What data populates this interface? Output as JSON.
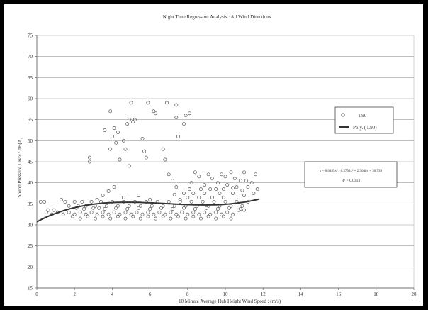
{
  "chart_data": {
    "type": "scatter",
    "title": "Night Time Regression Analysis : All Wind Directions",
    "xlabel": "10 Minute Average Hub Height Wind Speed : (m/s)",
    "ylabel": "Sound Pressure Level : dB(A)",
    "xlim": [
      0,
      20
    ],
    "ylim": [
      15,
      75
    ],
    "xticks": [
      "0",
      "2",
      "4",
      "6",
      "8",
      "10",
      "12",
      "14",
      "16",
      "18",
      "20"
    ],
    "yticks": [
      "15",
      "20",
      "25",
      "30",
      "35",
      "40",
      "45",
      "50",
      "55",
      "60",
      "65",
      "70",
      "75"
    ],
    "grid": "horizontal",
    "legend_position": "right",
    "legend": [
      "L90",
      "Poly. ( L90)"
    ],
    "equation": "y = 0.0185x³ - 0.3799x² + 2.3648x + 30.739",
    "r_squared": "R² = 0.0313",
    "trendline": {
      "name": "Poly. ( L90)",
      "coefficients": [
        0.0185,
        -0.3799,
        2.3648,
        30.739
      ],
      "x_range": [
        0,
        11.8
      ]
    },
    "series": [
      {
        "name": "L90",
        "points": [
          [
            2.8,
            46
          ],
          [
            2.8,
            45
          ],
          [
            3.6,
            52.5
          ],
          [
            3.9,
            57
          ],
          [
            3.9,
            48
          ],
          [
            4.0,
            51
          ],
          [
            4.1,
            53
          ],
          [
            4.2,
            49.5
          ],
          [
            4.3,
            52
          ],
          [
            4.4,
            45.5
          ],
          [
            4.6,
            50
          ],
          [
            4.7,
            48
          ],
          [
            4.8,
            54
          ],
          [
            4.9,
            55
          ],
          [
            4.9,
            44
          ],
          [
            5.0,
            59
          ],
          [
            5.1,
            54.5
          ],
          [
            5.2,
            55
          ],
          [
            5.6,
            50.5
          ],
          [
            5.7,
            47.5
          ],
          [
            5.8,
            46
          ],
          [
            5.9,
            59
          ],
          [
            6.2,
            57
          ],
          [
            6.3,
            56.5
          ],
          [
            6.7,
            48
          ],
          [
            6.8,
            45.5
          ],
          [
            6.9,
            59
          ],
          [
            7.4,
            58.5
          ],
          [
            7.4,
            55.5
          ],
          [
            7.5,
            51
          ],
          [
            7.8,
            54
          ],
          [
            7.9,
            56
          ],
          [
            8.1,
            56.5
          ],
          [
            3.2,
            36
          ],
          [
            3.3,
            34
          ],
          [
            3.5,
            37
          ],
          [
            3.8,
            38
          ],
          [
            4.1,
            39
          ],
          [
            4.6,
            36.5
          ],
          [
            5.4,
            37
          ],
          [
            6.0,
            36
          ],
          [
            7.0,
            42
          ],
          [
            7.2,
            40.5
          ],
          [
            7.4,
            39
          ],
          [
            7.6,
            36
          ],
          [
            8.2,
            40
          ],
          [
            8.4,
            42.5
          ],
          [
            8.6,
            41.5
          ],
          [
            8.9,
            39.5
          ],
          [
            9.1,
            42
          ],
          [
            9.3,
            41
          ],
          [
            9.5,
            38.5
          ],
          [
            9.6,
            40
          ],
          [
            9.8,
            42
          ],
          [
            10.0,
            41.5
          ],
          [
            10.1,
            39.5
          ],
          [
            10.3,
            42.5
          ],
          [
            10.5,
            41
          ],
          [
            10.6,
            39
          ],
          [
            10.8,
            40.5
          ],
          [
            11.0,
            42.5
          ],
          [
            11.1,
            40.5
          ],
          [
            11.2,
            39
          ],
          [
            11.4,
            40
          ],
          [
            11.6,
            42
          ],
          [
            11.7,
            38.5
          ],
          [
            11.5,
            37.5
          ],
          [
            11.0,
            37
          ],
          [
            10.7,
            36.5
          ],
          [
            10.4,
            37.5
          ],
          [
            9.9,
            36.5
          ],
          [
            9.7,
            37.5
          ],
          [
            9.3,
            36.5
          ],
          [
            8.9,
            37.5
          ],
          [
            8.6,
            36.5
          ],
          [
            8.3,
            37.5
          ],
          [
            8.0,
            36.5
          ],
          [
            7.8,
            37.5
          ],
          [
            0.2,
            35.5
          ],
          [
            0.4,
            35.5
          ],
          [
            0.6,
            33.5
          ],
          [
            0.9,
            33.5
          ],
          [
            1.3,
            36
          ],
          [
            1.5,
            35.5
          ],
          [
            1.7,
            34.5
          ],
          [
            2.0,
            35.5
          ],
          [
            2.2,
            34.5
          ],
          [
            2.4,
            35.5
          ],
          [
            2.6,
            34.5
          ],
          [
            2.9,
            35.5
          ],
          [
            3.1,
            34.5
          ],
          [
            3.4,
            35.5
          ],
          [
            3.7,
            34.5
          ],
          [
            4.0,
            35.5
          ],
          [
            4.3,
            34.5
          ],
          [
            4.6,
            35.5
          ],
          [
            4.9,
            34.5
          ],
          [
            5.2,
            35.5
          ],
          [
            5.5,
            34.5
          ],
          [
            5.8,
            35.5
          ],
          [
            6.1,
            34.5
          ],
          [
            6.4,
            35.5
          ],
          [
            6.7,
            34.5
          ],
          [
            7.0,
            35.5
          ],
          [
            7.3,
            34.5
          ],
          [
            7.6,
            35.5
          ],
          [
            7.9,
            34.5
          ],
          [
            8.2,
            35.5
          ],
          [
            8.5,
            34.5
          ],
          [
            8.8,
            35.5
          ],
          [
            9.1,
            34.5
          ],
          [
            9.4,
            35.5
          ],
          [
            9.7,
            34.5
          ],
          [
            10.0,
            35.5
          ],
          [
            10.3,
            34.5
          ],
          [
            10.6,
            35.5
          ],
          [
            10.9,
            34.5
          ],
          [
            11.2,
            35.5
          ],
          [
            0.5,
            33
          ],
          [
            0.8,
            32.5
          ],
          [
            1.1,
            33
          ],
          [
            1.4,
            32.5
          ],
          [
            1.7,
            33
          ],
          [
            2.0,
            32.5
          ],
          [
            2.3,
            33
          ],
          [
            2.6,
            32.5
          ],
          [
            2.9,
            33
          ],
          [
            3.2,
            32.5
          ],
          [
            3.5,
            33
          ],
          [
            3.8,
            32.5
          ],
          [
            4.1,
            33
          ],
          [
            4.4,
            32.5
          ],
          [
            4.7,
            33
          ],
          [
            5.0,
            32.5
          ],
          [
            5.3,
            33
          ],
          [
            5.6,
            32.5
          ],
          [
            5.9,
            33
          ],
          [
            6.2,
            32.5
          ],
          [
            6.5,
            33
          ],
          [
            6.8,
            32.5
          ],
          [
            7.1,
            33
          ],
          [
            7.4,
            32.5
          ],
          [
            7.7,
            33
          ],
          [
            8.0,
            32.5
          ],
          [
            8.3,
            33
          ],
          [
            8.6,
            32.5
          ],
          [
            8.9,
            33
          ],
          [
            9.2,
            32.5
          ],
          [
            9.5,
            33
          ],
          [
            9.8,
            32.5
          ],
          [
            10.1,
            33
          ],
          [
            10.4,
            32.5
          ],
          [
            10.7,
            33.5
          ],
          [
            11.0,
            33.5
          ],
          [
            1.9,
            32
          ],
          [
            2.3,
            31.5
          ],
          [
            2.7,
            32
          ],
          [
            3.1,
            31.5
          ],
          [
            3.5,
            32
          ],
          [
            3.9,
            31.5
          ],
          [
            4.3,
            32
          ],
          [
            4.7,
            31.5
          ],
          [
            5.1,
            32
          ],
          [
            5.5,
            31.5
          ],
          [
            5.9,
            32
          ],
          [
            6.3,
            31.5
          ],
          [
            6.7,
            32
          ],
          [
            7.1,
            31.5
          ],
          [
            7.5,
            32
          ],
          [
            7.9,
            31.5
          ],
          [
            8.3,
            32
          ],
          [
            8.7,
            31.5
          ],
          [
            9.1,
            32
          ],
          [
            9.5,
            31.5
          ],
          [
            9.9,
            32
          ],
          [
            10.3,
            31.5
          ],
          [
            2.1,
            34
          ],
          [
            2.5,
            33.8
          ],
          [
            3.0,
            34
          ],
          [
            3.6,
            33.8
          ],
          [
            4.2,
            34
          ],
          [
            4.8,
            33.8
          ],
          [
            5.4,
            34
          ],
          [
            6.0,
            33.8
          ],
          [
            6.6,
            34
          ],
          [
            7.2,
            33.8
          ],
          [
            7.8,
            34
          ],
          [
            8.4,
            33.8
          ],
          [
            9.0,
            34
          ],
          [
            9.6,
            33.8
          ],
          [
            10.2,
            34
          ],
          [
            10.8,
            33.8
          ],
          [
            8.1,
            38.5
          ],
          [
            8.7,
            38.5
          ],
          [
            9.2,
            38.5
          ],
          [
            9.9,
            38.5
          ],
          [
            10.4,
            38.8
          ],
          [
            10.9,
            38.2
          ],
          [
            7.3,
            37.2
          ]
        ]
      }
    ]
  }
}
